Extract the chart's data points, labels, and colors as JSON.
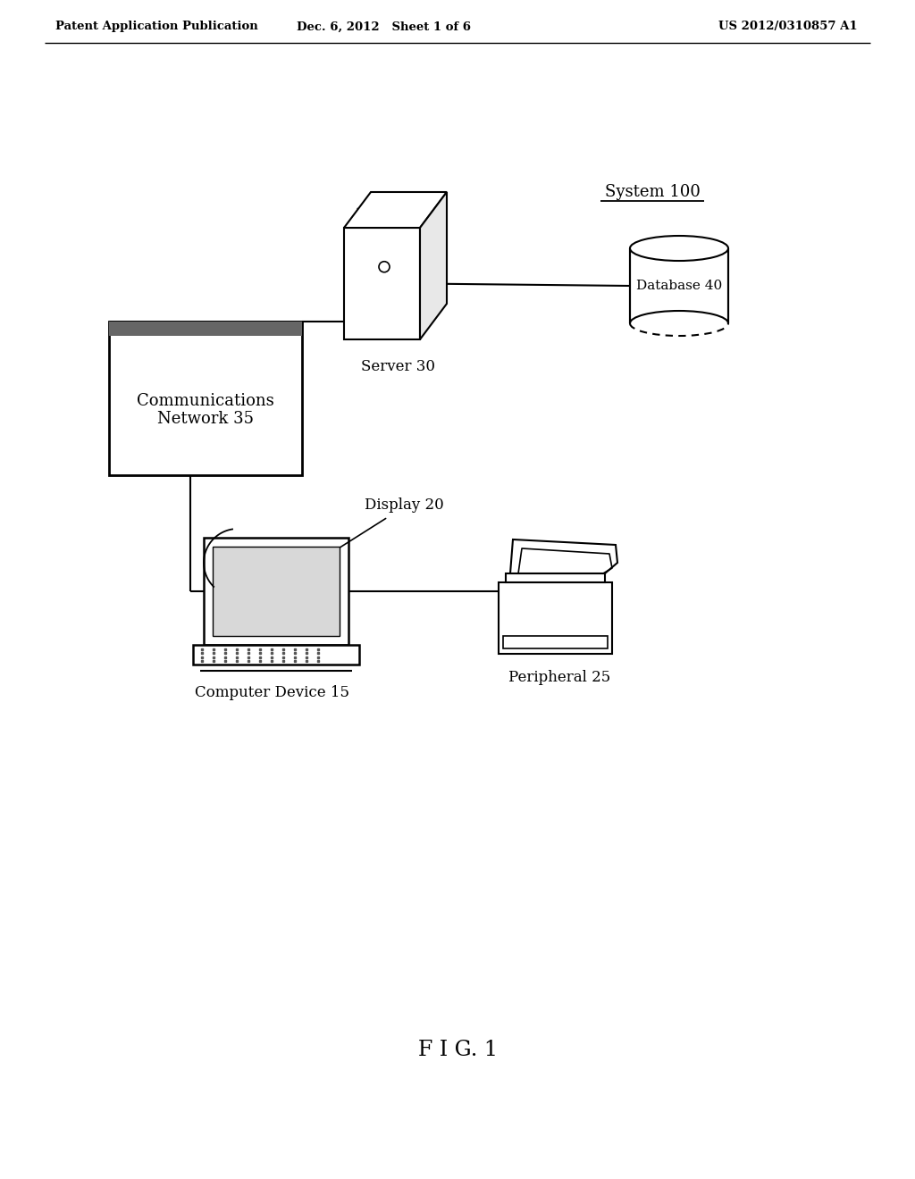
{
  "bg_color": "#ffffff",
  "header_left": "Patent Application Publication",
  "header_mid": "Dec. 6, 2012   Sheet 1 of 6",
  "header_right": "US 2012/0310857 A1",
  "system_label": "System 100",
  "server_label": "Server 30",
  "database_label": "Database 40",
  "network_label": "Communications\nNetwork 35",
  "display_label": "Display 20",
  "computer_label": "Computer Device 15",
  "peripheral_label": "Peripheral 25",
  "fig_label": "F I G. 1",
  "lc": "#000000",
  "tc": "#000000"
}
